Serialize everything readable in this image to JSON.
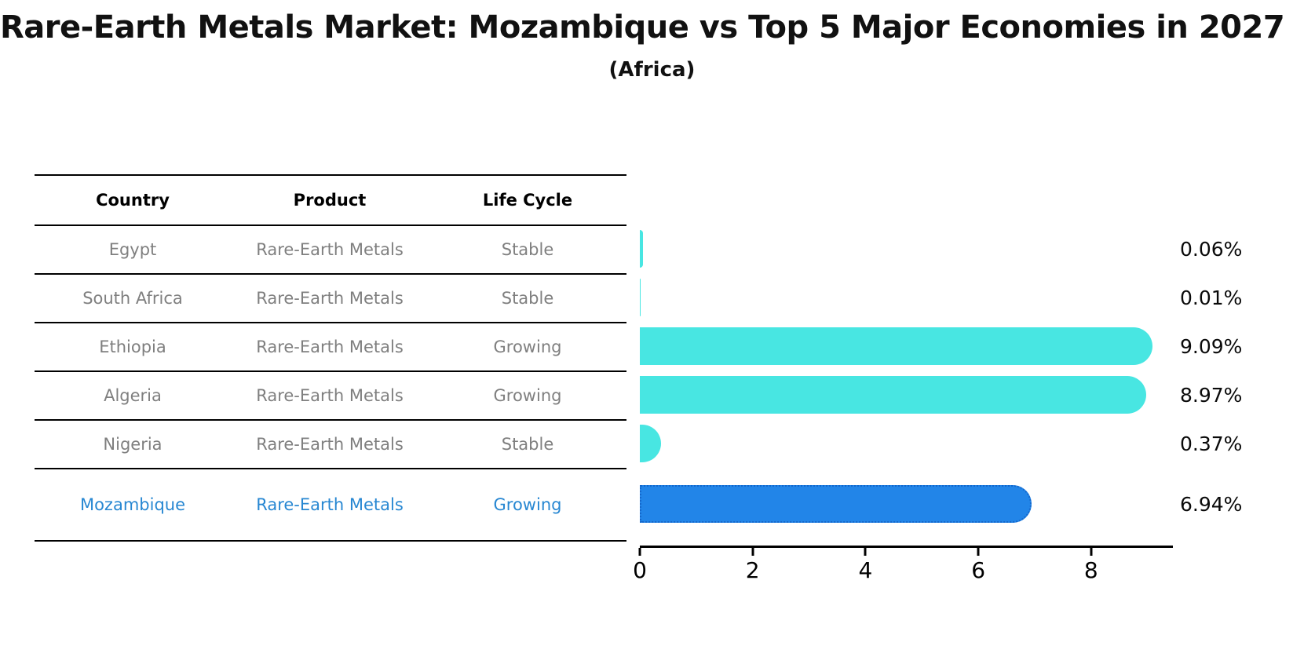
{
  "title": "Rare-Earth Metals Market: Mozambique vs Top 5 Major Economies in 2027",
  "subtitle": "(Africa)",
  "colors": {
    "bar_default": "#48E6E2",
    "bar_highlight": "#2285E8",
    "bar_highlight_border": "#1467CB",
    "highlight_text": "#2787D2",
    "row_text": "#7F7F7F",
    "header_text": "#000000",
    "value_label_text": "#0A0A0A"
  },
  "table": {
    "headers": [
      "Country",
      "Product",
      "Life Cycle"
    ],
    "rows": [
      {
        "country": "Egypt",
        "product": "Rare-Earth Metals",
        "life_cycle": "Stable"
      },
      {
        "country": "South Africa",
        "product": "Rare-Earth Metals",
        "life_cycle": "Stable"
      },
      {
        "country": "Ethiopia",
        "product": "Rare-Earth Metals",
        "life_cycle": "Growing"
      },
      {
        "country": "Algeria",
        "product": "Rare-Earth Metals",
        "life_cycle": "Growing"
      },
      {
        "country": "Nigeria",
        "product": "Rare-Earth Metals",
        "life_cycle": "Stable"
      },
      {
        "country": "Mozambique",
        "product": "Rare-Earth Metals",
        "life_cycle": "Growing"
      }
    ]
  },
  "chart_data": {
    "type": "bar",
    "orientation": "horizontal",
    "title": "Rare-Earth Metals Market: Mozambique vs Top 5 Major Economies in 2027",
    "subtitle": "(Africa)",
    "categories": [
      "Egypt",
      "South Africa",
      "Ethiopia",
      "Algeria",
      "Nigeria",
      "Mozambique"
    ],
    "values": [
      0.06,
      0.01,
      9.09,
      8.97,
      0.37,
      6.94
    ],
    "value_labels": [
      "0.06%",
      "0.01%",
      "9.09%",
      "8.97%",
      "0.37%",
      "6.94%"
    ],
    "xlabel": "",
    "ylabel": "",
    "xlim": [
      0,
      9.45
    ],
    "xticks": [
      0,
      2,
      4,
      6,
      8
    ],
    "grid": false,
    "legend": false,
    "highlight_index": 5,
    "highlight_category": "Mozambique"
  }
}
